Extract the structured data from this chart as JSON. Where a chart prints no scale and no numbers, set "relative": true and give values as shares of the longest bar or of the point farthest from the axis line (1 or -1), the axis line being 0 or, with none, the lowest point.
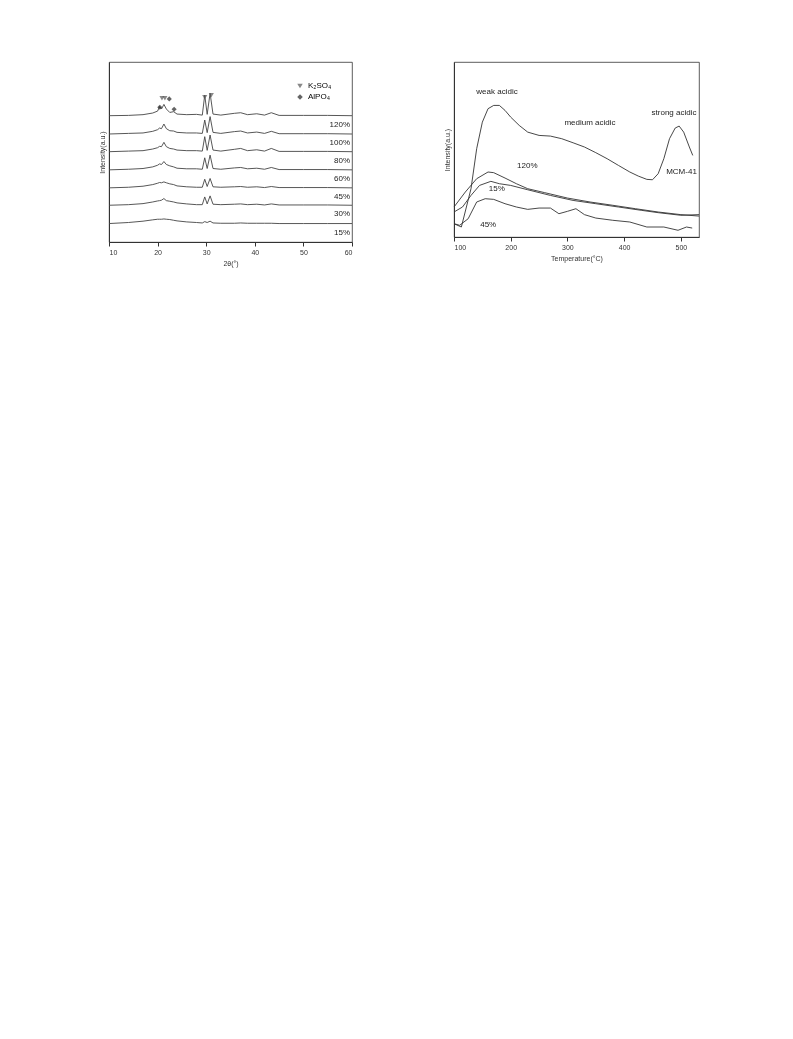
{
  "chart_data": [
    {
      "type": "line",
      "relative": true,
      "xlabel": "2θ(°)",
      "ylabel": "Intensity(a.u.)",
      "xlim": [
        10,
        60
      ],
      "xticks": [
        10,
        20,
        30,
        40,
        50,
        60
      ],
      "legend": "top right",
      "x": [
        10,
        14,
        17,
        19,
        20,
        20.4,
        20.8,
        21.3,
        21.8,
        22.5,
        23.3,
        24,
        26,
        28,
        29.2,
        29.7,
        30.2,
        30.8,
        31.4,
        33,
        35.8,
        37.1,
        38.5,
        40.4,
        42,
        43.4,
        45,
        50,
        55,
        60
      ],
      "series": [
        {
          "name": "120%",
          "color": "#444444",
          "values": [
            0.849,
            0.851,
            0.856,
            0.867,
            0.88,
            0.91,
            0.894,
            0.925,
            0.894,
            0.871,
            0.876,
            0.86,
            0.856,
            0.858,
            0.853,
            0.988,
            0.858,
            1.0,
            0.86,
            0.853,
            0.865,
            0.869,
            0.856,
            0.862,
            0.853,
            0.869,
            0.851,
            0.851,
            0.851,
            0.849
          ]
        },
        {
          "name": "100%",
          "color": "#444444",
          "values": [
            0.726,
            0.73,
            0.733,
            0.744,
            0.755,
            0.766,
            0.762,
            0.793,
            0.762,
            0.748,
            0.746,
            0.737,
            0.733,
            0.733,
            0.73,
            0.82,
            0.735,
            0.843,
            0.737,
            0.73,
            0.742,
            0.746,
            0.733,
            0.739,
            0.73,
            0.744,
            0.728,
            0.728,
            0.728,
            0.726
          ]
        },
        {
          "name": "80%",
          "color": "#444444",
          "values": [
            0.607,
            0.611,
            0.614,
            0.625,
            0.634,
            0.643,
            0.641,
            0.67,
            0.641,
            0.629,
            0.625,
            0.618,
            0.614,
            0.614,
            0.611,
            0.708,
            0.616,
            0.719,
            0.618,
            0.611,
            0.623,
            0.629,
            0.614,
            0.62,
            0.611,
            0.629,
            0.609,
            0.609,
            0.609,
            0.607
          ]
        },
        {
          "name": "60%",
          "color": "#444444",
          "values": [
            0.485,
            0.489,
            0.494,
            0.505,
            0.516,
            0.525,
            0.521,
            0.541,
            0.521,
            0.512,
            0.505,
            0.496,
            0.492,
            0.492,
            0.489,
            0.566,
            0.494,
            0.584,
            0.494,
            0.489,
            0.498,
            0.501,
            0.492,
            0.496,
            0.489,
            0.501,
            0.487,
            0.487,
            0.487,
            0.485
          ]
        },
        {
          "name": "45%",
          "color": "#444444",
          "values": [
            0.364,
            0.368,
            0.375,
            0.386,
            0.395,
            0.4,
            0.398,
            0.404,
            0.398,
            0.391,
            0.386,
            0.377,
            0.371,
            0.368,
            0.368,
            0.422,
            0.373,
            0.427,
            0.371,
            0.368,
            0.371,
            0.373,
            0.368,
            0.371,
            0.366,
            0.373,
            0.366,
            0.366,
            0.366,
            0.364
          ]
        },
        {
          "name": "30%",
          "color": "#444444",
          "values": [
            0.247,
            0.251,
            0.258,
            0.269,
            0.276,
            0.278,
            0.281,
            0.292,
            0.278,
            0.274,
            0.269,
            0.263,
            0.256,
            0.251,
            0.251,
            0.303,
            0.256,
            0.31,
            0.254,
            0.251,
            0.254,
            0.256,
            0.251,
            0.254,
            0.249,
            0.256,
            0.249,
            0.249,
            0.249,
            0.247
          ]
        },
        {
          "name": "15%",
          "color": "#444444",
          "values": [
            0.124,
            0.131,
            0.14,
            0.149,
            0.153,
            0.153,
            0.153,
            0.155,
            0.153,
            0.151,
            0.146,
            0.142,
            0.135,
            0.131,
            0.128,
            0.137,
            0.131,
            0.14,
            0.128,
            0.126,
            0.126,
            0.128,
            0.126,
            0.126,
            0.126,
            0.126,
            0.124,
            0.124,
            0.124,
            0.124
          ]
        },
        {
          "name": "K₂SO₄",
          "type": "scatter",
          "marker": "triangle",
          "color": "#555555",
          "x": [
            20.9,
            21.5,
            29.7,
            31.05
          ],
          "values": [
            0.966,
            0.966,
            0.973,
            0.987
          ]
        },
        {
          "name": "AlPO₄",
          "type": "scatter",
          "marker": "diamond",
          "color": "#222222",
          "x": [
            20.45,
            22.4,
            23.4
          ],
          "values": [
            0.906,
            0.962,
            0.892
          ]
        }
      ]
    },
    {
      "type": "line",
      "relative": true,
      "xlabel": "Temperature(°C)",
      "ylabel": "Intensity(a.u.)",
      "xlim": [
        100,
        532
      ],
      "xticks": [
        100,
        200,
        300,
        400,
        500
      ],
      "annotations": [
        "weak acidic",
        "medium acidic",
        "strong acidic"
      ],
      "series": [
        {
          "name": "MCM-41",
          "color": "#333333",
          "x": [
            100,
            113,
            130,
            140,
            150,
            160,
            170,
            180,
            190,
            200,
            215,
            230,
            250,
            270,
            290,
            310,
            330,
            350,
            370,
            390,
            410,
            425,
            440,
            450,
            460,
            470,
            480,
            490,
            497,
            505,
            515,
            521
          ],
          "values": [
            0.101,
            0.076,
            0.367,
            0.671,
            0.873,
            0.975,
            1.0,
            1.0,
            0.962,
            0.911,
            0.848,
            0.797,
            0.772,
            0.767,
            0.747,
            0.716,
            0.684,
            0.641,
            0.595,
            0.544,
            0.494,
            0.463,
            0.438,
            0.435,
            0.481,
            0.595,
            0.747,
            0.828,
            0.843,
            0.797,
            0.684,
            0.62
          ]
        },
        {
          "name": "120%",
          "color": "#333333",
          "x": [
            100,
            120,
            140,
            160,
            170,
            190,
            210,
            230,
            260,
            300,
            340,
            380,
            420,
            460,
            500,
            532
          ],
          "values": [
            0.228,
            0.342,
            0.443,
            0.494,
            0.489,
            0.448,
            0.405,
            0.367,
            0.337,
            0.296,
            0.266,
            0.241,
            0.215,
            0.19,
            0.17,
            0.159
          ]
        },
        {
          "name": "15%",
          "color": "#333333",
          "x": [
            100,
            115,
            130,
            145,
            165,
            180,
            200,
            230,
            270,
            310,
            350,
            390,
            430,
            460,
            500,
            532
          ],
          "values": [
            0.19,
            0.228,
            0.316,
            0.392,
            0.423,
            0.405,
            0.392,
            0.359,
            0.316,
            0.278,
            0.253,
            0.228,
            0.203,
            0.185,
            0.165,
            0.17
          ]
        },
        {
          "name": "45%",
          "color": "#333333",
          "x": [
            100,
            110,
            125,
            140,
            155,
            170,
            190,
            210,
            230,
            250,
            270,
            285,
            300,
            315,
            330,
            350,
            380,
            410,
            440,
            470,
            495,
            510,
            520
          ],
          "values": [
            0.101,
            0.089,
            0.139,
            0.266,
            0.291,
            0.286,
            0.253,
            0.228,
            0.21,
            0.22,
            0.22,
            0.177,
            0.195,
            0.215,
            0.17,
            0.144,
            0.127,
            0.114,
            0.076,
            0.076,
            0.051,
            0.076,
            0.068
          ]
        }
      ]
    }
  ]
}
